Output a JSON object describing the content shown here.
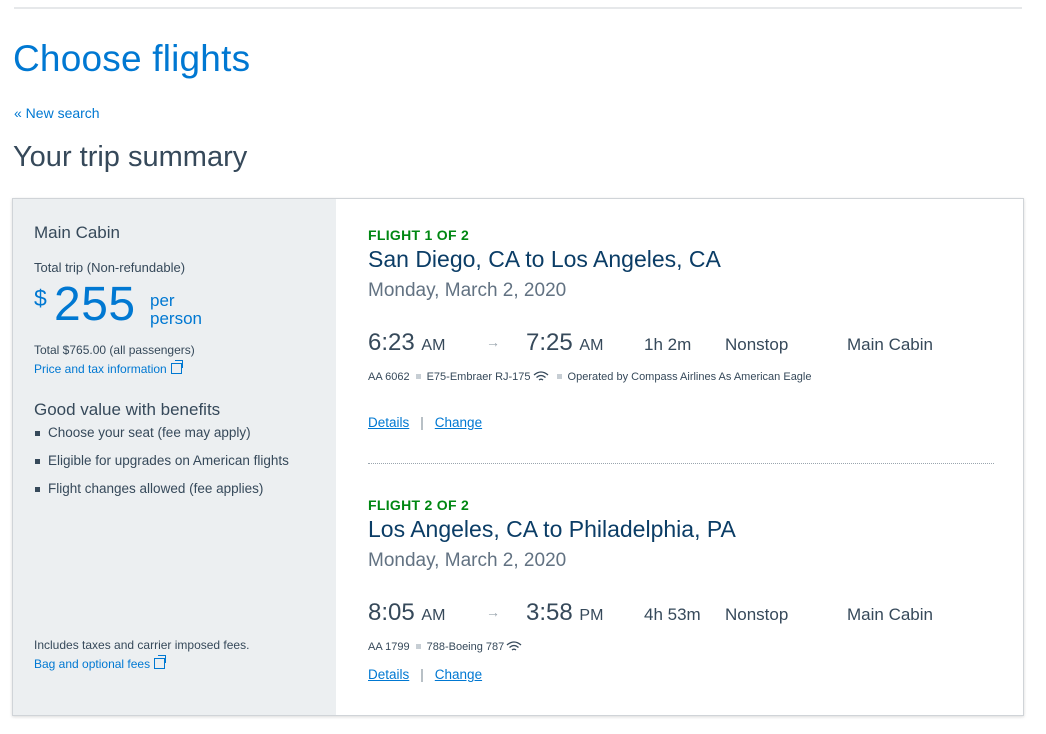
{
  "page": {
    "title": "Choose flights",
    "new_search": "« New search",
    "summary_heading": "Your trip summary"
  },
  "summary": {
    "cabin": "Main Cabin",
    "total_trip": "Total trip (Non-refundable)",
    "currency": "$",
    "amount": "255",
    "per_person": "per person",
    "total_all": "Total $765.00 (all passengers)",
    "price_tax_link": "Price and tax information",
    "benefits_title": "Good value with benefits",
    "benefits": [
      "Choose your seat (fee may apply)",
      "Eligible for upgrades on American flights",
      "Flight changes allowed (fee applies)"
    ],
    "fees_note": "Includes taxes and carrier imposed fees.",
    "bag_fees_link": "Bag and optional fees"
  },
  "flights": [
    {
      "label": "FLIGHT 1 OF 2",
      "route": "San Diego, CA to Los Angeles, CA",
      "date": "Monday, March 2, 2020",
      "dep_time": "6:23",
      "dep_ampm": "AM",
      "arrow": "→",
      "arr_time": "7:25",
      "arr_ampm": "AM",
      "duration": "1h  2m",
      "stops": "Nonstop",
      "cabin": "Main Cabin",
      "flight_no": "AA 6062",
      "aircraft": "E75-Embraer RJ-175",
      "operated": "Operated by Compass Airlines As American Eagle",
      "details": "Details",
      "change": "Change",
      "separator": "|",
      "wifi_icon": "wifi-icon"
    },
    {
      "label": "FLIGHT 2 OF 2",
      "route": "Los Angeles, CA to Philadelphia, PA",
      "date": "Monday, March 2, 2020",
      "dep_time": "8:05",
      "dep_ampm": "AM",
      "arrow": "→",
      "arr_time": "3:58",
      "arr_ampm": "PM",
      "duration": "4h  53m",
      "stops": "Nonstop",
      "cabin": "Main Cabin",
      "flight_no": "AA 1799",
      "aircraft": "788-Boeing 787",
      "details": "Details",
      "change": "Change",
      "separator": "|",
      "wifi_icon": "wifi-icon"
    }
  ],
  "colors": {
    "link": "#0078d2",
    "flight_label": "#008712",
    "route": "#0b3d66",
    "summary_bg": "#eceff1"
  }
}
